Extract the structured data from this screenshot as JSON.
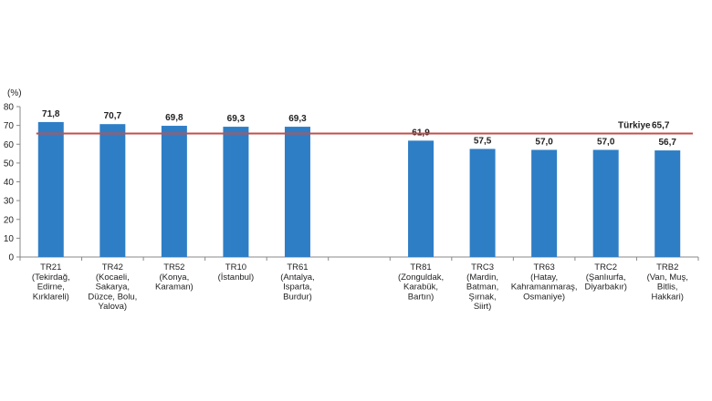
{
  "chart_data": {
    "type": "bar",
    "title": "",
    "xlabel": "",
    "ylabel": "",
    "unit": "(%)",
    "ylim": [
      0,
      80
    ],
    "yticks": [
      0,
      10,
      20,
      30,
      40,
      50,
      60,
      70,
      80
    ],
    "grid": false,
    "bar_color": "#2e7ec6",
    "reference_line": {
      "label": "Türkiye",
      "value": 65.7,
      "value_label": "65,7",
      "color": "#c0504d"
    },
    "categories": [
      {
        "lines": [
          "TR21",
          "(Tekirdağ,",
          "Edirne,",
          "Kırklareli)"
        ]
      },
      {
        "lines": [
          "TR42",
          "(Kocaeli,",
          "Sakarya,",
          "Düzce, Bolu,",
          "Yalova)"
        ]
      },
      {
        "lines": [
          "TR52",
          "(Konya,",
          "Karaman)"
        ]
      },
      {
        "lines": [
          "TR10",
          "(İstanbul)"
        ]
      },
      {
        "lines": [
          "TR61",
          "(Antalya,",
          "Isparta,",
          "Burdur)"
        ]
      },
      {
        "lines": [
          "TR81",
          "(Zonguldak,",
          "Karabük,",
          "Bartın)"
        ]
      },
      {
        "lines": [
          "TRC3",
          "(Mardin,",
          "Batman,",
          "Şırnak,",
          "Siirt)"
        ]
      },
      {
        "lines": [
          "TR63",
          "(Hatay,",
          "Kahramanmaraş,",
          "Osmaniye)"
        ]
      },
      {
        "lines": [
          "TRC2",
          "(Şanlıurfa,",
          "Diyarbakır)"
        ]
      },
      {
        "lines": [
          "TRB2",
          "(Van, Muş,",
          "Bitlis,",
          "Hakkari)"
        ]
      }
    ],
    "values": [
      71.8,
      70.7,
      69.8,
      69.3,
      69.3,
      61.9,
      57.5,
      57.0,
      57.0,
      56.7
    ],
    "value_labels": [
      "71,8",
      "70,7",
      "69,8",
      "69,3",
      "69,3",
      "61,9",
      "57,5",
      "57,0",
      "57,0",
      "56,7"
    ],
    "groups": [
      {
        "from": 0,
        "to": 4
      },
      {
        "from": 5,
        "to": 9
      }
    ]
  }
}
